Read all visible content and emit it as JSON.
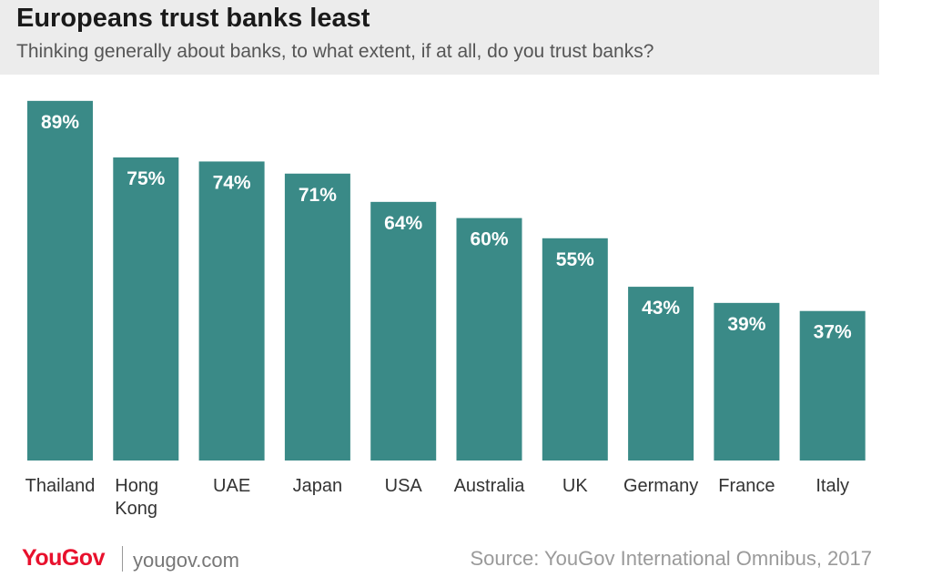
{
  "header": {
    "title": "Europeans trust banks least",
    "subtitle": "Thinking generally about banks, to what extent, if at all, do you trust banks?"
  },
  "footer": {
    "logo": "YouGov",
    "site": "yougov.com",
    "source": "Source: YouGov International Omnibus, 2017"
  },
  "colors": {
    "bar": "#3a8a87",
    "label": "#ffffff",
    "axis_text": "#333333",
    "header_bg": "#ececec",
    "brand": "#e8112d"
  },
  "chart_data": {
    "type": "bar",
    "categories": [
      "Thailand",
      "Hong Kong",
      "UAE",
      "Japan",
      "USA",
      "Australia",
      "UK",
      "Germany",
      "France",
      "Italy"
    ],
    "category_lines": [
      [
        "Thailand"
      ],
      [
        "Hong",
        "Kong"
      ],
      [
        "UAE"
      ],
      [
        "Japan"
      ],
      [
        "USA"
      ],
      [
        "Australia"
      ],
      [
        "UK"
      ],
      [
        "Germany"
      ],
      [
        "France"
      ],
      [
        "Italy"
      ]
    ],
    "values": [
      89,
      75,
      74,
      71,
      64,
      60,
      55,
      43,
      39,
      37
    ],
    "value_labels": [
      "89%",
      "75%",
      "74%",
      "71%",
      "64%",
      "60%",
      "55%",
      "43%",
      "39%",
      "37%"
    ],
    "ylim": [
      0,
      100
    ],
    "grid": false,
    "legend": "none"
  }
}
